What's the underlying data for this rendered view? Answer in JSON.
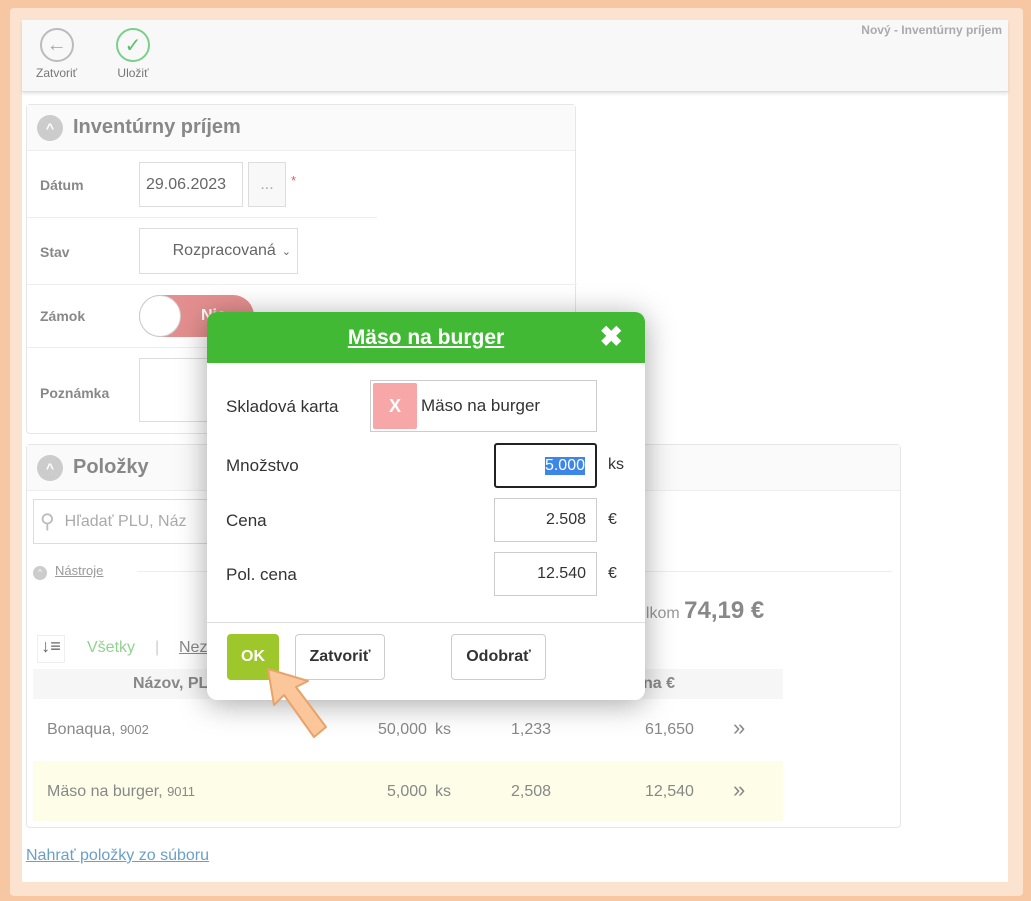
{
  "window_title": "Nový - Inventúrny príjem",
  "toolbar": {
    "close_label": "Zatvoriť",
    "save_label": "Uložiť"
  },
  "header": {
    "title": "Inventúrny príjem",
    "date_label": "Dátum",
    "date_value": "29.06.2023",
    "date_picker": "...",
    "required": "*",
    "state_label": "Stav",
    "state_value": "Rozpracovaná",
    "lock_label": "Zámok",
    "lock_value": "Nie",
    "note_label": "Poznámka"
  },
  "items": {
    "title": "Položky",
    "search_placeholder": "Hľadať PLU, Náz",
    "tools": "Nástroje",
    "total_label": "elkom",
    "total_value": "74,19 €",
    "filter_all": "Všetky",
    "filter_sep": "|",
    "filter_other": "Nez",
    "col_name": "Názov, PL",
    "col_price": "na €",
    "rows": [
      {
        "name": "Bonaqua",
        "plu": "9002",
        "qty": "50,000",
        "unit": "ks",
        "price": "1,233",
        "total": "61,650"
      },
      {
        "name": "Mäso na burger",
        "plu": "9011",
        "qty": "5,000",
        "unit": "ks",
        "price": "2,508",
        "total": "12,540"
      }
    ],
    "upload_link": "Nahrať položky zo súboru"
  },
  "modal": {
    "title": "Mäso na burger",
    "card_label": "Skladová karta",
    "card_remove": "X",
    "card_value": "Mäso na burger",
    "qty_label": "Množstvo",
    "qty_value": "5.000",
    "qty_unit": "ks",
    "price_label": "Cena",
    "price_value": "2.508",
    "price_unit": "€",
    "total_label": "Pol. cena",
    "total_value": "12.540",
    "total_unit": "€",
    "ok": "OK",
    "close": "Zatvoriť",
    "remove": "Odobrať"
  },
  "colors": {
    "accent": "#42b935",
    "ok_button": "#9dc72b",
    "highlight_row": "#fdfde8"
  }
}
